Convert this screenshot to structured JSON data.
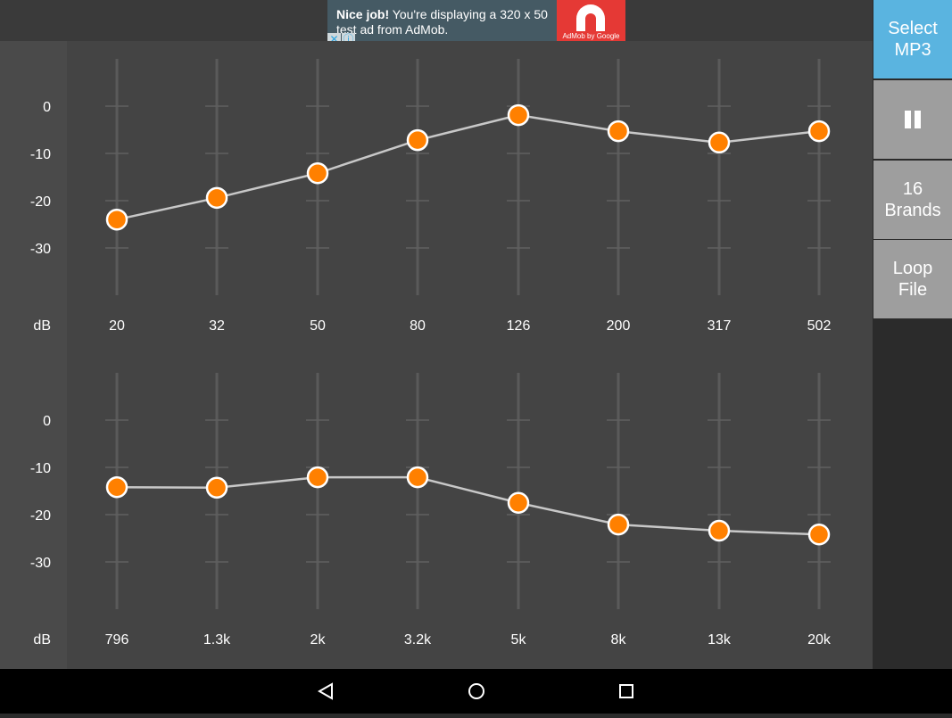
{
  "ad": {
    "headline": "Nice job!",
    "body": " You're displaying a 320 x 50 test ad from AdMob.",
    "brand": "AdMob by Google",
    "close_icon": "close-icon",
    "info_icon": "info-icon"
  },
  "sidebar": {
    "select_mp3": "Select\nMP3",
    "pause_icon": "pause-icon",
    "brands": "16\nBrands",
    "loop_file": "Loop\nFile",
    "accent": "#5ab4e0"
  },
  "equalizer": {
    "unit_label": "dB",
    "y_ticks": [
      "0",
      "-10",
      "-20",
      "-30"
    ],
    "y_tick_values": [
      0,
      -10,
      -20,
      -30
    ],
    "range_db": [
      -40,
      10
    ],
    "point_color": "#ff8000",
    "bands_top": [
      {
        "freq": "20",
        "gain": -24
      },
      {
        "freq": "32",
        "gain": -19.4
      },
      {
        "freq": "50",
        "gain": -14.2
      },
      {
        "freq": "80",
        "gain": -7.2
      },
      {
        "freq": "126",
        "gain": -1.9
      },
      {
        "freq": "200",
        "gain": -5.3
      },
      {
        "freq": "317",
        "gain": -7.7
      },
      {
        "freq": "502",
        "gain": -5.3
      }
    ],
    "bands_bottom": [
      {
        "freq": "796",
        "gain": -14.2
      },
      {
        "freq": "1.3k",
        "gain": -14.3
      },
      {
        "freq": "2k",
        "gain": -12.1
      },
      {
        "freq": "3.2k",
        "gain": -12.1
      },
      {
        "freq": "5k",
        "gain": -17.5
      },
      {
        "freq": "8k",
        "gain": -22.1
      },
      {
        "freq": "13k",
        "gain": -23.4
      },
      {
        "freq": "20k",
        "gain": -24.2
      }
    ]
  },
  "navbar": {
    "back": "back-icon",
    "home": "home-icon",
    "recents": "recents-icon"
  }
}
